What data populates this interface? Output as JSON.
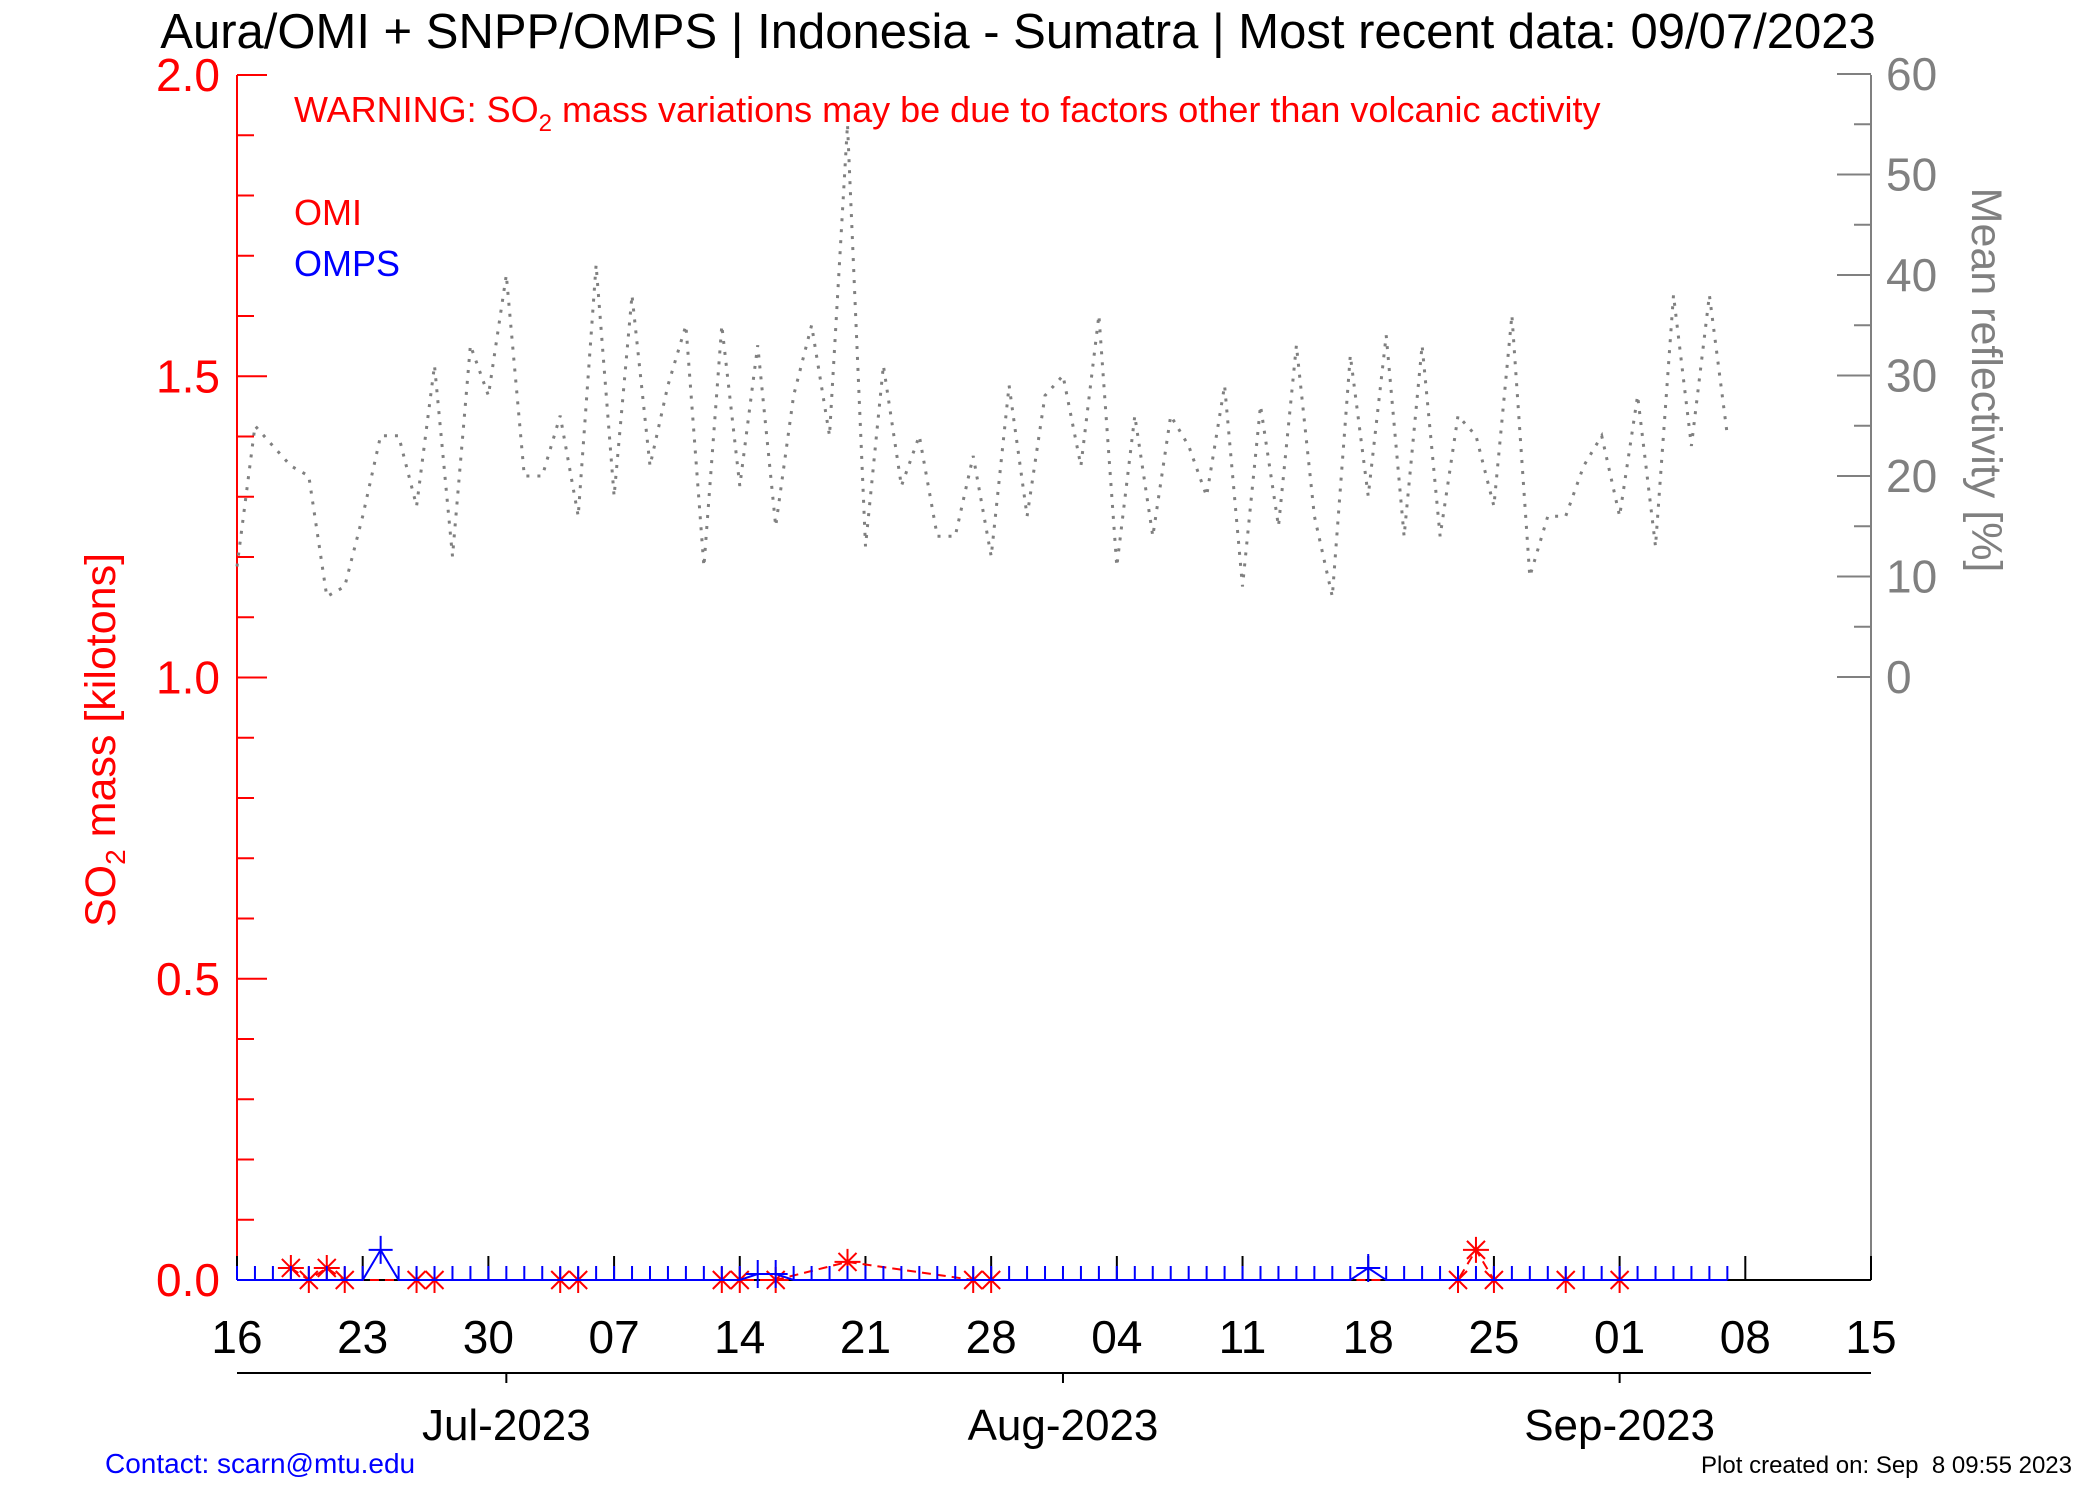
{
  "title": "Aura/OMI + SNPP/OMPS | Indonesia - Sumatra | Most recent data: 09/07/2023",
  "warning": {
    "prefix": "WARNING: SO",
    "sub": "2",
    "suffix": " mass variations may be due to factors other than volcanic activity"
  },
  "legend": {
    "omi": "OMI",
    "omps": "OMPS"
  },
  "colors": {
    "omi": "#ff0000",
    "omps": "#0000ff",
    "reflectivity": "#808080",
    "axis": "#000000",
    "contact": "#0000ff"
  },
  "footer": {
    "contact": "Contact: scarn@mtu.edu",
    "created": "Plot created on: Sep  8 09:55 2023"
  },
  "chart_data": {
    "type": "line",
    "title": "Aura/OMI + SNPP/OMPS | Indonesia - Sumatra | Most recent data: 09/07/2023",
    "x_axis": {
      "range": [
        "2023-06-16",
        "2023-09-15"
      ],
      "tick_dates": [
        "2023-06-16",
        "2023-06-23",
        "2023-06-30",
        "2023-07-07",
        "2023-07-14",
        "2023-07-21",
        "2023-07-28",
        "2023-08-04",
        "2023-08-11",
        "2023-08-18",
        "2023-08-25",
        "2023-09-01",
        "2023-09-08",
        "2023-09-15"
      ],
      "tick_labels": [
        "16",
        "23",
        "30",
        "07",
        "14",
        "21",
        "28",
        "04",
        "11",
        "18",
        "25",
        "01",
        "08",
        "15"
      ],
      "month_dates": [
        "2023-07-01",
        "2023-08-01",
        "2023-09-01"
      ],
      "month_labels": [
        "Jul-2023",
        "Aug-2023",
        "Sep-2023"
      ]
    },
    "y_left": {
      "label_prefix": "SO",
      "label_sub": "2",
      "label_suffix": " mass [kilotons]",
      "range": [
        0,
        2.0
      ],
      "ticks": [
        0.0,
        0.5,
        1.0,
        1.5,
        2.0
      ],
      "tick_labels": [
        "0.0",
        "0.5",
        "1.0",
        "1.5",
        "2.0"
      ]
    },
    "y_right": {
      "label": "Mean reflectivity [%]",
      "ticks": [
        0,
        10,
        20,
        30,
        40,
        50,
        60
      ],
      "tick_labels": [
        "0",
        "10",
        "20",
        "30",
        "40",
        "50",
        "60"
      ]
    },
    "series": [
      {
        "name": "OMI",
        "axis": "left",
        "style": "dashed",
        "marker": "asterisk",
        "points": [
          {
            "date": "2023-06-19",
            "value": 0.02
          },
          {
            "date": "2023-06-20",
            "value": 0.0
          },
          {
            "date": "2023-06-21",
            "value": 0.02
          },
          {
            "date": "2023-06-22",
            "value": 0.0
          },
          {
            "date": "2023-06-26",
            "value": 0.0
          },
          {
            "date": "2023-06-27",
            "value": 0.0
          },
          {
            "date": "2023-07-04",
            "value": 0.0
          },
          {
            "date": "2023-07-05",
            "value": 0.0
          },
          {
            "date": "2023-07-13",
            "value": 0.0
          },
          {
            "date": "2023-07-14",
            "value": 0.0
          },
          {
            "date": "2023-07-16",
            "value": 0.0
          },
          {
            "date": "2023-07-20",
            "value": 0.03
          },
          {
            "date": "2023-07-27",
            "value": 0.0
          },
          {
            "date": "2023-07-28",
            "value": 0.0
          },
          {
            "date": "2023-08-23",
            "value": 0.0
          },
          {
            "date": "2023-08-24",
            "value": 0.05
          },
          {
            "date": "2023-08-25",
            "value": 0.0
          },
          {
            "date": "2023-08-29",
            "value": 0.0
          },
          {
            "date": "2023-09-01",
            "value": 0.0
          }
        ]
      },
      {
        "name": "OMPS",
        "axis": "left",
        "style": "solid",
        "marker": "tick",
        "points": [
          {
            "date": "2023-06-16",
            "value": 0.0
          },
          {
            "date": "2023-06-17",
            "value": 0.0
          },
          {
            "date": "2023-06-18",
            "value": 0.0
          },
          {
            "date": "2023-06-19",
            "value": 0.0
          },
          {
            "date": "2023-06-20",
            "value": 0.0
          },
          {
            "date": "2023-06-21",
            "value": 0.0
          },
          {
            "date": "2023-06-22",
            "value": 0.0
          },
          {
            "date": "2023-06-23",
            "value": 0.0
          },
          {
            "date": "2023-06-24",
            "value": 0.05
          },
          {
            "date": "2023-06-25",
            "value": 0.0
          },
          {
            "date": "2023-06-26",
            "value": 0.0
          },
          {
            "date": "2023-06-27",
            "value": 0.0
          },
          {
            "date": "2023-06-28",
            "value": 0.0
          },
          {
            "date": "2023-06-29",
            "value": 0.0
          },
          {
            "date": "2023-06-30",
            "value": 0.0
          },
          {
            "date": "2023-07-01",
            "value": 0.0
          },
          {
            "date": "2023-07-02",
            "value": 0.0
          },
          {
            "date": "2023-07-03",
            "value": 0.0
          },
          {
            "date": "2023-07-04",
            "value": 0.0
          },
          {
            "date": "2023-07-05",
            "value": 0.0
          },
          {
            "date": "2023-07-06",
            "value": 0.0
          },
          {
            "date": "2023-07-07",
            "value": 0.0
          },
          {
            "date": "2023-07-08",
            "value": 0.0
          },
          {
            "date": "2023-07-09",
            "value": 0.0
          },
          {
            "date": "2023-07-10",
            "value": 0.0
          },
          {
            "date": "2023-07-11",
            "value": 0.0
          },
          {
            "date": "2023-07-12",
            "value": 0.0
          },
          {
            "date": "2023-07-13",
            "value": 0.0
          },
          {
            "date": "2023-07-14",
            "value": 0.0
          },
          {
            "date": "2023-07-15",
            "value": 0.01
          },
          {
            "date": "2023-07-16",
            "value": 0.01
          },
          {
            "date": "2023-07-17",
            "value": 0.0
          },
          {
            "date": "2023-07-18",
            "value": 0.0
          },
          {
            "date": "2023-07-19",
            "value": 0.0
          },
          {
            "date": "2023-07-20",
            "value": 0.0
          },
          {
            "date": "2023-07-21",
            "value": 0.0
          },
          {
            "date": "2023-07-22",
            "value": 0.0
          },
          {
            "date": "2023-07-23",
            "value": 0.0
          },
          {
            "date": "2023-07-24",
            "value": 0.0
          },
          {
            "date": "2023-07-25",
            "value": 0.0
          },
          {
            "date": "2023-07-26",
            "value": 0.0
          },
          {
            "date": "2023-07-27",
            "value": 0.0
          },
          {
            "date": "2023-07-28",
            "value": 0.0
          },
          {
            "date": "2023-07-29",
            "value": 0.0
          },
          {
            "date": "2023-07-30",
            "value": 0.0
          },
          {
            "date": "2023-07-31",
            "value": 0.0
          },
          {
            "date": "2023-08-01",
            "value": 0.0
          },
          {
            "date": "2023-08-02",
            "value": 0.0
          },
          {
            "date": "2023-08-03",
            "value": 0.0
          },
          {
            "date": "2023-08-04",
            "value": 0.0
          },
          {
            "date": "2023-08-05",
            "value": 0.0
          },
          {
            "date": "2023-08-06",
            "value": 0.0
          },
          {
            "date": "2023-08-07",
            "value": 0.0
          },
          {
            "date": "2023-08-08",
            "value": 0.0
          },
          {
            "date": "2023-08-09",
            "value": 0.0
          },
          {
            "date": "2023-08-10",
            "value": 0.0
          },
          {
            "date": "2023-08-11",
            "value": 0.0
          },
          {
            "date": "2023-08-12",
            "value": 0.0
          },
          {
            "date": "2023-08-13",
            "value": 0.0
          },
          {
            "date": "2023-08-14",
            "value": 0.0
          },
          {
            "date": "2023-08-15",
            "value": 0.0
          },
          {
            "date": "2023-08-16",
            "value": 0.0
          },
          {
            "date": "2023-08-17",
            "value": 0.0
          },
          {
            "date": "2023-08-18",
            "value": 0.02
          },
          {
            "date": "2023-08-19",
            "value": 0.0
          },
          {
            "date": "2023-08-20",
            "value": 0.0
          },
          {
            "date": "2023-08-21",
            "value": 0.0
          },
          {
            "date": "2023-08-22",
            "value": 0.0
          },
          {
            "date": "2023-08-23",
            "value": 0.0
          },
          {
            "date": "2023-08-24",
            "value": 0.0
          },
          {
            "date": "2023-08-25",
            "value": 0.0
          },
          {
            "date": "2023-08-26",
            "value": 0.0
          },
          {
            "date": "2023-08-27",
            "value": 0.0
          },
          {
            "date": "2023-08-28",
            "value": 0.0
          },
          {
            "date": "2023-08-29",
            "value": 0.0
          },
          {
            "date": "2023-08-30",
            "value": 0.0
          },
          {
            "date": "2023-08-31",
            "value": 0.0
          },
          {
            "date": "2023-09-01",
            "value": 0.0
          },
          {
            "date": "2023-09-02",
            "value": 0.0
          },
          {
            "date": "2023-09-03",
            "value": 0.0
          },
          {
            "date": "2023-09-04",
            "value": 0.0
          },
          {
            "date": "2023-09-05",
            "value": 0.0
          },
          {
            "date": "2023-09-06",
            "value": 0.0
          },
          {
            "date": "2023-09-07",
            "value": 0.0
          }
        ]
      },
      {
        "name": "Mean reflectivity",
        "axis": "right",
        "style": "dotted",
        "points": [
          {
            "date": "2023-06-16",
            "value": 11
          },
          {
            "date": "2023-06-17",
            "value": 25
          },
          {
            "date": "2023-06-18",
            "value": 23
          },
          {
            "date": "2023-06-19",
            "value": 21
          },
          {
            "date": "2023-06-20",
            "value": 20
          },
          {
            "date": "2023-06-21",
            "value": 8
          },
          {
            "date": "2023-06-22",
            "value": 9
          },
          {
            "date": "2023-06-23",
            "value": 16
          },
          {
            "date": "2023-06-24",
            "value": 24
          },
          {
            "date": "2023-06-25",
            "value": 24
          },
          {
            "date": "2023-06-26",
            "value": 17
          },
          {
            "date": "2023-06-27",
            "value": 31
          },
          {
            "date": "2023-06-28",
            "value": 12
          },
          {
            "date": "2023-06-29",
            "value": 33
          },
          {
            "date": "2023-06-30",
            "value": 28
          },
          {
            "date": "2023-07-01",
            "value": 40
          },
          {
            "date": "2023-07-02",
            "value": 20
          },
          {
            "date": "2023-07-03",
            "value": 20
          },
          {
            "date": "2023-07-04",
            "value": 26
          },
          {
            "date": "2023-07-05",
            "value": 16
          },
          {
            "date": "2023-07-06",
            "value": 41
          },
          {
            "date": "2023-07-07",
            "value": 18
          },
          {
            "date": "2023-07-08",
            "value": 38
          },
          {
            "date": "2023-07-09",
            "value": 21
          },
          {
            "date": "2023-07-10",
            "value": 29
          },
          {
            "date": "2023-07-11",
            "value": 35
          },
          {
            "date": "2023-07-12",
            "value": 11
          },
          {
            "date": "2023-07-13",
            "value": 35
          },
          {
            "date": "2023-07-14",
            "value": 19
          },
          {
            "date": "2023-07-15",
            "value": 33
          },
          {
            "date": "2023-07-16",
            "value": 15
          },
          {
            "date": "2023-07-17",
            "value": 28
          },
          {
            "date": "2023-07-18",
            "value": 35
          },
          {
            "date": "2023-07-19",
            "value": 24
          },
          {
            "date": "2023-07-20",
            "value": 55
          },
          {
            "date": "2023-07-21",
            "value": 13
          },
          {
            "date": "2023-07-22",
            "value": 31
          },
          {
            "date": "2023-07-23",
            "value": 19
          },
          {
            "date": "2023-07-24",
            "value": 24
          },
          {
            "date": "2023-07-25",
            "value": 14
          },
          {
            "date": "2023-07-26",
            "value": 14
          },
          {
            "date": "2023-07-27",
            "value": 22
          },
          {
            "date": "2023-07-28",
            "value": 12
          },
          {
            "date": "2023-07-29",
            "value": 29
          },
          {
            "date": "2023-07-30",
            "value": 16
          },
          {
            "date": "2023-07-31",
            "value": 28
          },
          {
            "date": "2023-08-01",
            "value": 30
          },
          {
            "date": "2023-08-02",
            "value": 21
          },
          {
            "date": "2023-08-03",
            "value": 36
          },
          {
            "date": "2023-08-04",
            "value": 11
          },
          {
            "date": "2023-08-05",
            "value": 26
          },
          {
            "date": "2023-08-06",
            "value": 14
          },
          {
            "date": "2023-08-07",
            "value": 26
          },
          {
            "date": "2023-08-08",
            "value": 23
          },
          {
            "date": "2023-08-09",
            "value": 18
          },
          {
            "date": "2023-08-10",
            "value": 29
          },
          {
            "date": "2023-08-11",
            "value": 9
          },
          {
            "date": "2023-08-12",
            "value": 27
          },
          {
            "date": "2023-08-13",
            "value": 15
          },
          {
            "date": "2023-08-14",
            "value": 33
          },
          {
            "date": "2023-08-15",
            "value": 16
          },
          {
            "date": "2023-08-16",
            "value": 8
          },
          {
            "date": "2023-08-17",
            "value": 32
          },
          {
            "date": "2023-08-18",
            "value": 18
          },
          {
            "date": "2023-08-19",
            "value": 34
          },
          {
            "date": "2023-08-20",
            "value": 14
          },
          {
            "date": "2023-08-21",
            "value": 33
          },
          {
            "date": "2023-08-22",
            "value": 14
          },
          {
            "date": "2023-08-23",
            "value": 26
          },
          {
            "date": "2023-08-24",
            "value": 24
          },
          {
            "date": "2023-08-25",
            "value": 17
          },
          {
            "date": "2023-08-26",
            "value": 36
          },
          {
            "date": "2023-08-27",
            "value": 10
          },
          {
            "date": "2023-08-28",
            "value": 16
          },
          {
            "date": "2023-08-29",
            "value": 16
          },
          {
            "date": "2023-08-30",
            "value": 21
          },
          {
            "date": "2023-08-31",
            "value": 24
          },
          {
            "date": "2023-09-01",
            "value": 16
          },
          {
            "date": "2023-09-02",
            "value": 28
          },
          {
            "date": "2023-09-03",
            "value": 13
          },
          {
            "date": "2023-09-04",
            "value": 38
          },
          {
            "date": "2023-09-05",
            "value": 23
          },
          {
            "date": "2023-09-06",
            "value": 38
          },
          {
            "date": "2023-09-07",
            "value": 24
          }
        ]
      }
    ]
  }
}
